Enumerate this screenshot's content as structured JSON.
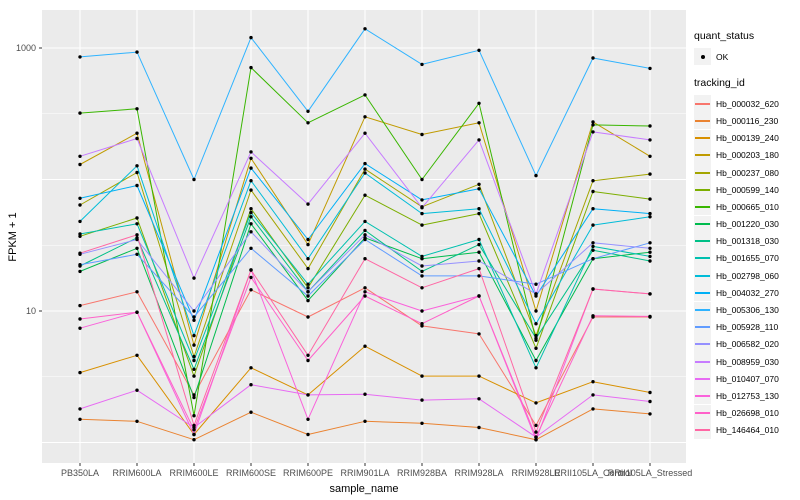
{
  "figure": {
    "background": "#FFFFFF",
    "panel_background": "#EBEBEB",
    "grid_color": "#FFFFFF",
    "axis_text_color": "#4D4D4D",
    "point_color": "#000000"
  },
  "axes": {
    "y_title": "FPKM + 1",
    "x_title": "sample_name",
    "y_tick_labels": [
      "1000",
      "10"
    ],
    "y_tick_values": [
      1000,
      10
    ]
  },
  "legend": {
    "quant_title": "quant_status",
    "quant_ok_label": "OK",
    "tracking_title": "tracking_id"
  },
  "chart_data": {
    "type": "line",
    "title": "",
    "xlabel": "sample_name",
    "ylabel": "FPKM + 1",
    "y_scale": "log10",
    "y_axis_breaks": [
      10,
      1000
    ],
    "y_minor_breaks": [
      3.162,
      31.62,
      316.2
    ],
    "y_major_gridlines": [
      1,
      10,
      100,
      1000
    ],
    "ylim": [
      0.66,
      1930
    ],
    "grid": true,
    "legend_position": "right",
    "point_legend": {
      "title": "quant_status",
      "label": "OK",
      "color": "#000000"
    },
    "series_legend_title": "tracking_id",
    "categories": [
      "PB350LA",
      "RRIM600LA",
      "RRIM600LE",
      "RRIM600SE",
      "RRIM600PE",
      "RRIM901LA",
      "RRIM928BA",
      "RRIM928LA",
      "RRIM928LE",
      "RRII105LA_Control",
      "RRII105LA_Stressed"
    ],
    "series": [
      {
        "name": "Hb_000032_620",
        "color": "#F8766D",
        "values": [
          11,
          14,
          2.3,
          14.5,
          9,
          15,
          7.7,
          6.7,
          1.35,
          9,
          9
        ]
      },
      {
        "name": "Hb_000116_230",
        "color": "#EA8331",
        "values": [
          1.5,
          1.45,
          1.05,
          1.7,
          1.15,
          1.45,
          1.4,
          1.3,
          1.05,
          1.8,
          1.65
        ]
      },
      {
        "name": "Hb_000139_240",
        "color": "#D89000",
        "values": [
          3.4,
          4.6,
          1.15,
          3.7,
          2.3,
          5.4,
          3.2,
          3.2,
          2.0,
          2.9,
          2.4
        ]
      },
      {
        "name": "Hb_000203_180",
        "color": "#C09B00",
        "values": [
          130,
          225,
          5.5,
          145,
          32,
          300,
          220,
          270,
          10,
          274,
          150
        ]
      },
      {
        "name": "Hb_000237_080",
        "color": "#A3A500",
        "values": [
          64,
          113,
          4.5,
          83,
          21,
          120,
          62,
          92,
          6.5,
          98,
          110
        ]
      },
      {
        "name": "Hb_000599_140",
        "color": "#7CAE00",
        "values": [
          37,
          51,
          3.2,
          60,
          15,
          76,
          45,
          55,
          5.2,
          81,
          71
        ]
      },
      {
        "name": "Hb_000665_010",
        "color": "#39B600",
        "values": [
          320,
          345,
          1.6,
          710,
          270,
          440,
          100,
          380,
          6,
          260,
          255
        ]
      },
      {
        "name": "Hb_001220_030",
        "color": "#00BB4E",
        "values": [
          20,
          30,
          2.2,
          46,
          12,
          36,
          25,
          28,
          4.2,
          25,
          28
        ]
      },
      {
        "name": "Hb_001318_030",
        "color": "#00C087",
        "values": [
          22,
          36,
          3.6,
          52,
          14,
          41,
          20,
          32,
          6.2,
          29,
          24
        ]
      },
      {
        "name": "Hb_001655_070",
        "color": "#00C0AF",
        "values": [
          38.5,
          46,
          4.2,
          56,
          16,
          48,
          26,
          35,
          3.7,
          31,
          26
        ]
      },
      {
        "name": "Hb_002798_060",
        "color": "#00BCD8",
        "values": [
          48,
          127,
          6.5,
          98,
          25,
          112,
          55,
          60,
          8,
          45,
          52
        ]
      },
      {
        "name": "Hb_004032_270",
        "color": "#00B0F6",
        "values": [
          72,
          90,
          8.5,
          122,
          35,
          132,
          70,
          85,
          13,
          60,
          55
        ]
      },
      {
        "name": "Hb_005306_130",
        "color": "#2FB3FF",
        "values": [
          855,
          930,
          100,
          1200,
          330,
          1400,
          750,
          960,
          107,
          840,
          700
        ]
      },
      {
        "name": "Hb_005928_110",
        "color": "#619CFF",
        "values": [
          22.5,
          27,
          9,
          30,
          13,
          35,
          18.5,
          18.5,
          16,
          25,
          33
        ]
      },
      {
        "name": "Hb_006582_020",
        "color": "#9590FF",
        "values": [
          27,
          35,
          10,
          40,
          14,
          38,
          22,
          24,
          13.5,
          33,
          30
        ]
      },
      {
        "name": "Hb_008959_030",
        "color": "#C77CFF",
        "values": [
          150,
          205,
          17.8,
          162,
          65,
          225,
          61,
          200,
          13.5,
          230,
          200
        ]
      },
      {
        "name": "Hb_010407_070",
        "color": "#E76BF3",
        "values": [
          1.8,
          2.5,
          1.3,
          2.75,
          2.3,
          2.33,
          2.1,
          2.15,
          1.1,
          2.3,
          2.05
        ]
      },
      {
        "name": "Hb_012753_130",
        "color": "#FA62DB",
        "values": [
          7.4,
          9.8,
          1.15,
          20.5,
          1.5,
          14,
          10,
          13,
          1.05,
          14.7,
          13.5
        ]
      },
      {
        "name": "Hb_026698_010",
        "color": "#FF61C9",
        "values": [
          8.7,
          9.8,
          1.25,
          18,
          4.2,
          13,
          8,
          13,
          1.1,
          9.2,
          9.1
        ]
      },
      {
        "name": "Hb_146464_010",
        "color": "#FF67A4",
        "values": [
          27.5,
          38,
          1.35,
          20.5,
          4.6,
          25,
          15,
          21,
          1.2,
          14.7,
          13.5
        ]
      }
    ]
  }
}
